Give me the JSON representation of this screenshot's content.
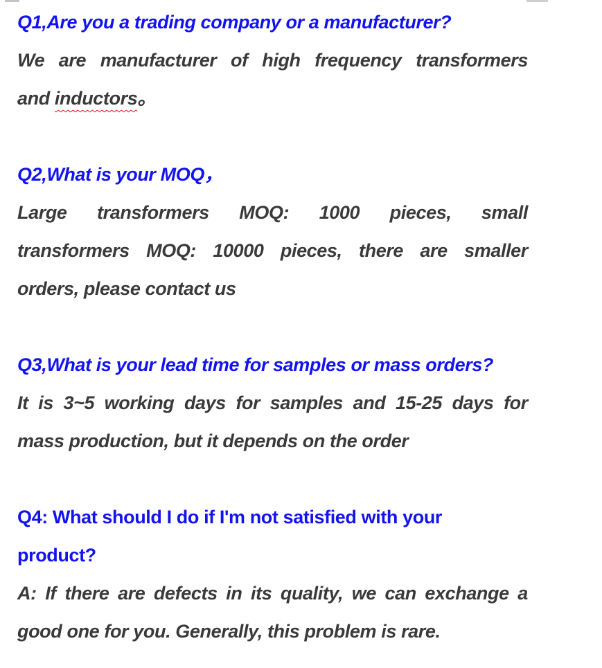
{
  "colors": {
    "question_blue": "#1313f0",
    "answer_dark": "#3a3a3a",
    "spellcheck_red": "#e01010",
    "edge_artifact_gray": "#c4c4c4"
  },
  "faq": {
    "q1": {
      "question": "Q1,Are you a trading company or a manufacturer?",
      "answer_l1": "We are manufacturer of high frequency transformers",
      "answer_l2_pre": "and ",
      "answer_l2_flagged": "inductors",
      "answer_l2_period": "。"
    },
    "q2": {
      "question": "Q2,What is your MOQ，",
      "answer_l1": "Large transformers MOQ: 1000 pieces, small",
      "answer_l2": "transformers MOQ: 10000 pieces, there are smaller",
      "answer_l3": "orders, please contact us"
    },
    "q3": {
      "question": "Q3,What is your lead time for samples or mass orders?",
      "answer_l1": "It is 3~5 working days for samples and 15-25 days for",
      "answer_l2": "mass production, but it depends on the order"
    },
    "q4": {
      "question_l1": "Q4: What should I do if I'm not satisfied with your",
      "question_l2": "product?",
      "answer_l1": "A: If there are defects in its quality, we can exchange a",
      "answer_l2": "good one for you. Generally, this problem is rare."
    }
  }
}
